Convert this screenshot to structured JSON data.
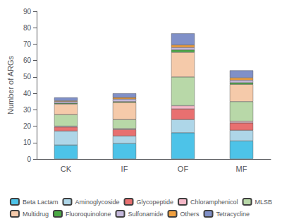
{
  "chart_data": {
    "type": "bar",
    "stacked": true,
    "grid": false,
    "legend": "bottom",
    "ylabel": "Number of ARGs",
    "categories": [
      "CK",
      "IF",
      "OF",
      "MF"
    ],
    "ylim": [
      0,
      90
    ],
    "yticks": [
      0,
      10,
      20,
      30,
      40,
      50,
      60,
      70,
      80,
      90
    ],
    "series": [
      {
        "name": "Beta Lactam",
        "color": "#4DC3E8",
        "values": [
          8.5,
          9.5,
          16.0,
          11.0
        ]
      },
      {
        "name": "Aminoglycoside",
        "color": "#AED6E8",
        "values": [
          8.5,
          4.5,
          8.0,
          6.5
        ]
      },
      {
        "name": "Glycopeptide",
        "color": "#E87070",
        "values": [
          2.5,
          4.0,
          6.5,
          4.5
        ]
      },
      {
        "name": "Chloramphenicol",
        "color": "#F4B8C8",
        "values": [
          0.5,
          0.5,
          2.0,
          1.0
        ]
      },
      {
        "name": "MLSB",
        "color": "#B8D8A8",
        "values": [
          7.0,
          5.5,
          17.5,
          12.0
        ]
      },
      {
        "name": "Multidrug",
        "color": "#F5CAAA",
        "values": [
          6.5,
          10.5,
          15.0,
          10.5
        ]
      },
      {
        "name": "Fluoroquinolone",
        "color": "#4AAA44",
        "values": [
          0.5,
          0.5,
          1.5,
          1.0
        ]
      },
      {
        "name": "Sulfonamide",
        "color": "#C4B8DC",
        "values": [
          1.0,
          1.5,
          1.5,
          1.5
        ]
      },
      {
        "name": "Others",
        "color": "#F0A040",
        "values": [
          0.5,
          1.0,
          1.5,
          1.5
        ]
      },
      {
        "name": "Tetracycline",
        "color": "#8090C8",
        "values": [
          2.0,
          2.5,
          7.0,
          4.5
        ]
      }
    ]
  }
}
